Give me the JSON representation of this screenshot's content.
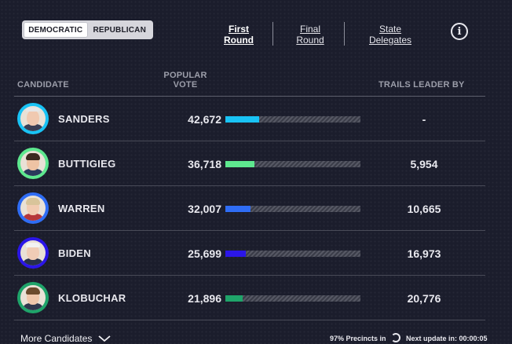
{
  "party_toggle": {
    "options": [
      "DEMOCRATIC",
      "REPUBLICAN"
    ],
    "selected": "DEMOCRATIC"
  },
  "round_tabs": [
    {
      "line1": "First",
      "line2": "Round",
      "active": true
    },
    {
      "line1": "Final",
      "line2": "Round",
      "active": false
    },
    {
      "line1": "State",
      "line2": "Delegates",
      "active": false
    }
  ],
  "info_icon": "info-circle-icon",
  "headers": {
    "candidate": "CANDIDATE",
    "popular_vote_line1": "POPULAR",
    "popular_vote_line2": "VOTE",
    "trails_leader_by": "TRAILS LEADER BY"
  },
  "candidates": [
    {
      "name": "SANDERS",
      "votes": "42,672",
      "trails": "-",
      "vote_share": 0.248,
      "color": "#19c3f5",
      "avatar_color": "#19c3f5"
    },
    {
      "name": "BUTTIGIEG",
      "votes": "36,718",
      "trails": "5,954",
      "vote_share": 0.213,
      "color": "#5ee88f",
      "avatar_color": "#5ee88f"
    },
    {
      "name": "WARREN",
      "votes": "32,007",
      "trails": "10,665",
      "vote_share": 0.186,
      "color": "#2f6df5",
      "avatar_color": "#2f6df5"
    },
    {
      "name": "BIDEN",
      "votes": "25,699",
      "trails": "16,973",
      "vote_share": 0.149,
      "color": "#2b16e8",
      "avatar_color": "#2b16e8"
    },
    {
      "name": "KLOBUCHAR",
      "votes": "21,896",
      "trails": "20,776",
      "vote_share": 0.127,
      "color": "#1fa46a",
      "avatar_color": "#1fa46a"
    }
  ],
  "footer": {
    "more_candidates": "More Candidates",
    "precincts": "97% Precincts in",
    "next_update": "Next update in: 00:00:05"
  }
}
